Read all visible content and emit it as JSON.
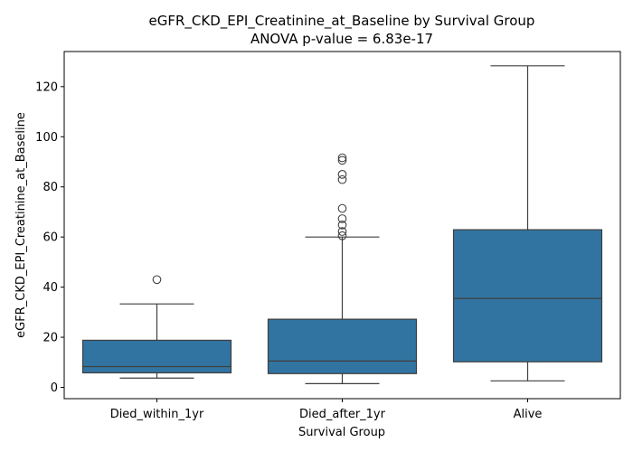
{
  "chart_data": {
    "type": "box",
    "title": "eGFR_CKD_EPI_Creatinine_at_Baseline by Survival Group",
    "subtitle": "ANOVA p-value = 6.83e-17",
    "xlabel": "Survival Group",
    "ylabel": "eGFR_CKD_EPI_Creatinine_at_Baseline",
    "ylim": [
      -4.5,
      134
    ],
    "yticks": [
      0,
      20,
      40,
      60,
      80,
      100,
      120
    ],
    "grid": false,
    "box_color": "#3274a1",
    "edge_color": "#3f3f3f",
    "categories": [
      "Died_within_1yr",
      "Died_after_1yr",
      "Alive"
    ],
    "boxes": [
      {
        "category": "Died_within_1yr",
        "whisker_low": 3.7,
        "q1": 5.8,
        "median": 8.3,
        "q3": 18.8,
        "whisker_high": 33.3,
        "outliers": [
          43.0
        ]
      },
      {
        "category": "Died_after_1yr",
        "whisker_low": 1.5,
        "q1": 5.5,
        "median": 10.5,
        "q3": 27.2,
        "whisker_high": 60.0,
        "outliers": [
          60.5,
          62.2,
          64.8,
          67.3,
          71.4,
          82.9,
          85.0,
          90.6,
          91.6
        ]
      },
      {
        "category": "Alive",
        "whisker_low": 2.6,
        "q1": 10.2,
        "median": 35.5,
        "q3": 62.9,
        "whisker_high": 128.3,
        "outliers": []
      }
    ]
  }
}
